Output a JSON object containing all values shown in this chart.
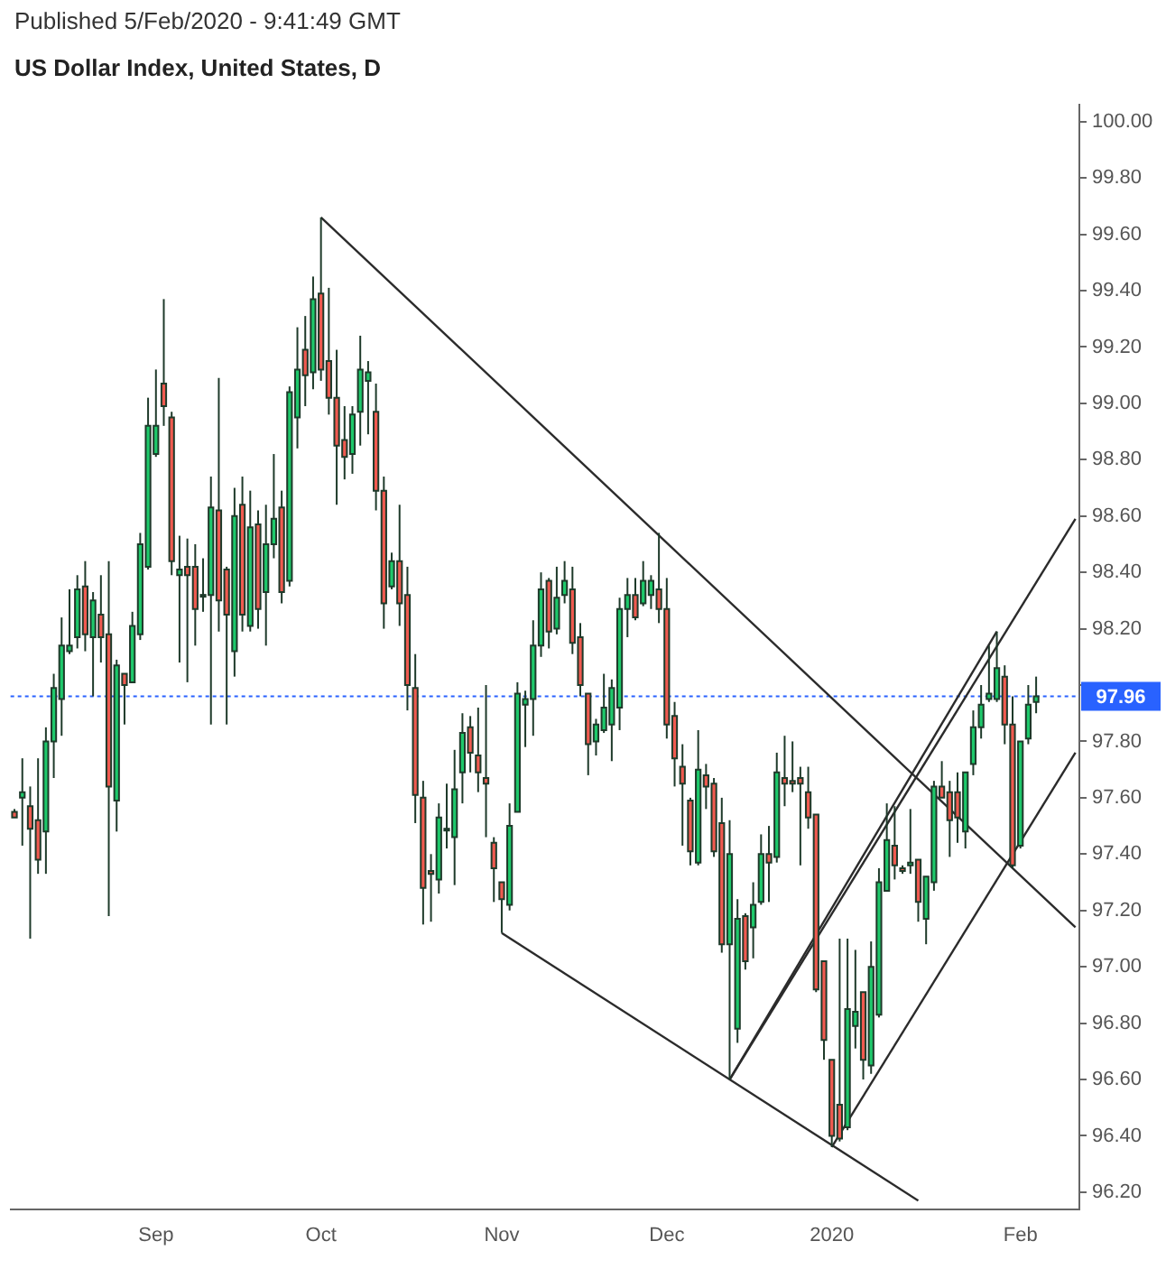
{
  "chart_data": {
    "type": "candlestick",
    "title": "US Dollar Index, United States, D",
    "annotations": [
      "Published 5/Feb/2020 - 9:41:49 GMT"
    ],
    "categories": [
      null,
      null,
      null,
      null,
      null,
      null,
      null,
      null,
      null,
      null,
      null,
      null,
      null,
      null,
      null,
      null,
      null,
      null,
      "Sep",
      null,
      null,
      null,
      null,
      null,
      null,
      null,
      null,
      null,
      null,
      null,
      null,
      null,
      null,
      null,
      null,
      null,
      null,
      null,
      null,
      "Oct",
      null,
      null,
      null,
      null,
      null,
      null,
      null,
      null,
      null,
      null,
      null,
      null,
      null,
      null,
      null,
      null,
      null,
      null,
      null,
      null,
      null,
      null,
      "Nov",
      null,
      null,
      null,
      null,
      null,
      null,
      null,
      null,
      null,
      null,
      null,
      null,
      null,
      null,
      null,
      null,
      null,
      null,
      null,
      null,
      "Dec",
      null,
      null,
      null,
      null,
      null,
      null,
      null,
      null,
      null,
      null,
      null,
      null,
      null,
      null,
      null,
      null,
      null,
      null,
      null,
      null,
      "2020",
      null,
      null,
      null,
      null,
      null,
      null,
      null,
      null,
      null,
      null,
      null,
      null,
      null,
      null,
      null,
      null,
      null,
      null,
      null,
      null,
      null,
      null,
      null,
      "Feb",
      null,
      null,
      null,
      null,
      null,
      null,
      null
    ],
    "ohlc": [
      [
        97.55,
        97.56,
        97.53,
        97.53
      ],
      [
        97.6,
        97.74,
        97.43,
        97.62
      ],
      [
        97.57,
        97.64,
        97.1,
        97.49
      ],
      [
        97.52,
        97.74,
        97.33,
        97.38
      ],
      [
        97.48,
        97.85,
        97.33,
        97.8
      ],
      [
        97.8,
        98.04,
        97.67,
        97.99
      ],
      [
        97.95,
        98.24,
        97.82,
        98.14
      ],
      [
        98.12,
        98.34,
        98.11,
        98.14
      ],
      [
        98.17,
        98.39,
        98.13,
        98.34
      ],
      [
        98.35,
        98.44,
        98.12,
        98.18
      ],
      [
        98.17,
        98.33,
        97.96,
        98.3
      ],
      [
        98.25,
        98.39,
        98.08,
        98.17
      ],
      [
        98.18,
        98.44,
        97.18,
        97.64
      ],
      [
        97.59,
        98.09,
        97.48,
        98.07
      ],
      [
        98.04,
        98.04,
        97.86,
        98.0
      ],
      [
        98.01,
        98.26,
        98.01,
        98.21
      ],
      [
        98.18,
        98.54,
        98.16,
        98.5
      ],
      [
        98.42,
        99.02,
        98.41,
        98.92
      ],
      [
        98.82,
        99.12,
        98.81,
        98.92
      ],
      [
        99.07,
        99.37,
        98.92,
        98.99
      ],
      [
        98.95,
        98.97,
        98.39,
        98.44
      ],
      [
        98.39,
        98.53,
        98.08,
        98.41
      ],
      [
        98.42,
        98.52,
        98.01,
        98.39
      ],
      [
        98.42,
        98.5,
        98.14,
        98.27
      ],
      [
        98.32,
        98.45,
        98.26,
        98.32
      ],
      [
        98.32,
        98.74,
        97.86,
        98.63
      ],
      [
        98.62,
        99.09,
        98.19,
        98.3
      ],
      [
        98.41,
        98.42,
        97.86,
        98.25
      ],
      [
        98.12,
        98.7,
        98.03,
        98.6
      ],
      [
        98.64,
        98.74,
        98.19,
        98.25
      ],
      [
        98.21,
        98.69,
        98.19,
        98.56
      ],
      [
        98.57,
        98.62,
        98.2,
        98.27
      ],
      [
        98.33,
        98.64,
        98.14,
        98.5
      ],
      [
        98.5,
        98.82,
        98.45,
        98.59
      ],
      [
        98.63,
        98.69,
        98.29,
        98.33
      ],
      [
        98.37,
        99.06,
        98.35,
        99.04
      ],
      [
        98.95,
        99.27,
        98.84,
        99.12
      ],
      [
        99.19,
        99.31,
        98.99,
        99.1
      ],
      [
        99.11,
        99.45,
        99.05,
        99.37
      ],
      [
        99.39,
        99.66,
        99.08,
        99.12
      ],
      [
        99.15,
        99.41,
        98.96,
        99.02
      ],
      [
        99.02,
        99.19,
        98.64,
        98.85
      ],
      [
        98.87,
        98.99,
        98.73,
        98.81
      ],
      [
        98.82,
        98.99,
        98.75,
        98.96
      ],
      [
        98.97,
        99.24,
        98.85,
        99.12
      ],
      [
        99.08,
        99.15,
        98.89,
        99.11
      ],
      [
        98.97,
        99.07,
        98.62,
        98.69
      ],
      [
        98.69,
        98.74,
        98.2,
        98.29
      ],
      [
        98.35,
        98.47,
        98.34,
        98.44
      ],
      [
        98.44,
        98.64,
        98.21,
        98.29
      ],
      [
        98.32,
        98.42,
        97.91,
        98.0
      ],
      [
        97.99,
        98.11,
        97.51,
        97.61
      ],
      [
        97.6,
        97.66,
        97.15,
        97.28
      ],
      [
        97.34,
        97.4,
        97.16,
        97.33
      ],
      [
        97.31,
        97.58,
        97.26,
        97.53
      ],
      [
        97.49,
        97.65,
        97.42,
        97.49
      ],
      [
        97.46,
        97.77,
        97.29,
        97.63
      ],
      [
        97.69,
        97.9,
        97.58,
        97.83
      ],
      [
        97.85,
        97.89,
        97.69,
        97.76
      ],
      [
        97.75,
        97.92,
        97.62,
        97.69
      ],
      [
        97.67,
        98.0,
        97.46,
        97.65
      ],
      [
        97.44,
        97.46,
        97.23,
        97.35
      ],
      [
        97.3,
        97.3,
        97.12,
        97.24
      ],
      [
        97.22,
        97.58,
        97.2,
        97.5
      ],
      [
        97.55,
        98.01,
        97.55,
        97.97
      ],
      [
        97.93,
        97.98,
        97.78,
        97.95
      ],
      [
        97.95,
        98.23,
        97.82,
        98.14
      ],
      [
        98.14,
        98.4,
        98.1,
        98.34
      ],
      [
        98.37,
        98.38,
        98.13,
        98.19
      ],
      [
        98.2,
        98.42,
        98.18,
        98.31
      ],
      [
        98.32,
        98.44,
        98.29,
        98.37
      ],
      [
        98.34,
        98.42,
        98.11,
        98.15
      ],
      [
        98.17,
        98.22,
        97.96,
        98.0
      ],
      [
        97.97,
        97.97,
        97.68,
        97.79
      ],
      [
        97.8,
        97.88,
        97.75,
        97.86
      ],
      [
        97.84,
        98.04,
        97.83,
        97.92
      ],
      [
        97.86,
        98.02,
        97.73,
        97.99
      ],
      [
        97.92,
        98.31,
        97.84,
        98.27
      ],
      [
        98.27,
        98.38,
        98.17,
        98.32
      ],
      [
        98.32,
        98.38,
        98.23,
        98.24
      ],
      [
        98.29,
        98.44,
        98.28,
        98.37
      ],
      [
        98.32,
        98.39,
        98.27,
        98.37
      ],
      [
        98.34,
        98.54,
        98.22,
        98.27
      ],
      [
        98.27,
        98.38,
        97.81,
        97.86
      ],
      [
        97.89,
        97.94,
        97.64,
        97.74
      ],
      [
        97.71,
        97.79,
        97.43,
        97.65
      ],
      [
        97.59,
        97.6,
        97.36,
        97.41
      ],
      [
        97.37,
        97.84,
        97.36,
        97.7
      ],
      [
        97.68,
        97.72,
        97.56,
        97.64
      ],
      [
        97.65,
        97.67,
        97.39,
        97.41
      ],
      [
        97.51,
        97.6,
        97.05,
        97.08
      ],
      [
        97.08,
        97.52,
        96.6,
        97.4
      ],
      [
        96.78,
        97.24,
        96.73,
        97.17
      ],
      [
        97.18,
        97.19,
        96.99,
        97.02
      ],
      [
        97.14,
        97.3,
        97.03,
        97.22
      ],
      [
        97.23,
        97.47,
        97.22,
        97.4
      ],
      [
        97.4,
        97.5,
        97.23,
        97.37
      ],
      [
        97.39,
        97.76,
        97.37,
        97.69
      ],
      [
        97.67,
        97.82,
        97.57,
        97.65
      ],
      [
        97.66,
        97.8,
        97.62,
        97.65
      ],
      [
        97.67,
        97.71,
        97.36,
        97.65
      ],
      [
        97.62,
        97.71,
        97.49,
        97.53
      ],
      [
        97.54,
        97.54,
        96.91,
        96.92
      ],
      [
        97.02,
        97.02,
        96.67,
        96.74
      ],
      [
        96.67,
        96.67,
        96.36,
        96.4
      ],
      [
        96.51,
        97.1,
        96.38,
        96.39
      ],
      [
        96.43,
        97.1,
        96.42,
        96.85
      ],
      [
        96.79,
        97.06,
        96.71,
        96.84
      ],
      [
        96.91,
        96.91,
        96.6,
        96.67
      ],
      [
        96.65,
        97.09,
        96.62,
        97.0
      ],
      [
        96.83,
        97.35,
        96.82,
        97.3
      ],
      [
        97.27,
        97.58,
        97.27,
        97.45
      ],
      [
        97.43,
        97.57,
        97.31,
        97.36
      ],
      [
        97.35,
        97.36,
        97.33,
        97.34
      ],
      [
        97.36,
        97.56,
        97.33,
        97.37
      ],
      [
        97.38,
        97.38,
        97.16,
        97.23
      ],
      [
        97.17,
        97.32,
        97.08,
        97.32
      ],
      [
        97.3,
        97.66,
        97.27,
        97.64
      ],
      [
        97.64,
        97.73,
        97.6,
        97.6
      ],
      [
        97.62,
        97.66,
        97.39,
        97.52
      ],
      [
        97.62,
        97.69,
        97.44,
        97.53
      ],
      [
        97.48,
        97.69,
        97.42,
        97.69
      ],
      [
        97.72,
        97.91,
        97.68,
        97.85
      ],
      [
        97.85,
        98.0,
        97.81,
        97.93
      ],
      [
        97.95,
        98.14,
        97.94,
        97.97
      ],
      [
        97.95,
        98.19,
        97.94,
        98.06
      ],
      [
        98.03,
        98.07,
        97.79,
        97.86
      ],
      [
        97.86,
        97.96,
        97.35,
        97.36
      ],
      [
        97.43,
        97.8,
        97.42,
        97.8
      ],
      [
        97.81,
        98.0,
        97.79,
        97.93
      ],
      [
        97.94,
        98.03,
        97.9,
        97.96
      ],
      null,
      null,
      null,
      null,
      null
    ],
    "colors": [
      "#f05a50",
      "#1ec96b",
      "#f05a50",
      "#f05a50",
      "#1ec96b",
      "#1ec96b",
      "#1ec96b",
      "#1ec96b",
      "#1ec96b",
      "#f05a50",
      "#1ec96b",
      "#f05a50",
      "#f05a50",
      "#1ec96b",
      "#f05a50",
      "#1ec96b",
      "#1ec96b",
      "#1ec96b",
      "#1ec96b",
      "#f05a50",
      "#f05a50",
      "#1ec96b",
      "#f05a50",
      "#f05a50",
      "#1ec96b",
      "#1ec96b",
      "#f05a50",
      "#f05a50",
      "#1ec96b",
      "#f05a50",
      "#1ec96b",
      "#f05a50",
      "#1ec96b",
      "#1ec96b",
      "#f05a50",
      "#1ec96b",
      "#1ec96b",
      "#f05a50",
      "#1ec96b",
      "#f05a50",
      "#f05a50",
      "#f05a50",
      "#f05a50",
      "#1ec96b",
      "#1ec96b",
      "#1ec96b",
      "#f05a50",
      "#f05a50",
      "#1ec96b",
      "#f05a50",
      "#f05a50",
      "#f05a50",
      "#f05a50",
      "#f05a50",
      "#1ec96b",
      "#1ec96b",
      "#1ec96b",
      "#1ec96b",
      "#f05a50",
      "#f05a50",
      "#f05a50",
      "#f05a50",
      "#f05a50",
      "#1ec96b",
      "#1ec96b",
      "#1ec96b",
      "#1ec96b",
      "#1ec96b",
      "#f05a50",
      "#1ec96b",
      "#1ec96b",
      "#f05a50",
      "#f05a50",
      "#f05a50",
      "#1ec96b",
      "#1ec96b",
      "#1ec96b",
      "#1ec96b",
      "#1ec96b",
      "#f05a50",
      "#1ec96b",
      "#1ec96b",
      "#f05a50",
      "#f05a50",
      "#f05a50",
      "#f05a50",
      "#f05a50",
      "#1ec96b",
      "#f05a50",
      "#f05a50",
      "#f05a50",
      "#1ec96b",
      "#1ec96b",
      "#f05a50",
      "#1ec96b",
      "#1ec96b",
      "#f05a50",
      "#1ec96b",
      "#f05a50",
      "#f05a50",
      "#f05a50",
      "#f05a50",
      "#f05a50",
      "#f05a50",
      "#f05a50",
      "#f05a50",
      "#1ec96b",
      "#1ec96b",
      "#f05a50",
      "#1ec96b",
      "#1ec96b",
      "#1ec96b",
      "#f05a50",
      "#f05a50",
      "#1ec96b",
      "#f05a50",
      "#1ec96b",
      "#1ec96b",
      "#f05a50",
      "#f05a50",
      "#f05a50",
      "#1ec96b",
      "#1ec96b",
      "#1ec96b",
      "#1ec96b",
      "#1ec96b",
      "#f05a50",
      "#f05a50",
      "#1ec96b",
      "#1ec96b",
      "#1ec96b",
      null,
      null,
      null,
      null,
      null
    ],
    "series": [
      {
        "type": "line",
        "color": "#2b2b2b",
        "values": [
          null,
          null,
          null,
          null,
          null,
          null,
          null,
          null,
          null,
          null,
          null,
          null,
          null,
          null,
          null,
          null,
          null,
          null,
          null,
          null,
          null,
          null,
          null,
          null,
          null,
          null,
          null,
          null,
          null,
          null,
          null,
          null,
          null,
          null,
          null,
          null,
          null,
          null,
          null,
          99.66,
          null,
          null,
          null,
          null,
          null,
          null,
          null,
          null,
          null,
          null,
          null,
          null,
          null,
          null,
          null,
          null,
          null,
          null,
          null,
          null,
          null,
          null,
          null,
          null,
          null,
          null,
          null,
          null,
          null,
          null,
          null,
          null,
          null,
          null,
          null,
          null,
          null,
          null,
          null,
          null,
          null,
          null,
          null,
          null,
          null,
          null,
          null,
          null,
          null,
          null,
          null,
          null,
          null,
          null,
          null,
          null,
          null,
          null,
          null,
          null,
          null,
          null,
          null,
          null,
          null,
          null,
          null,
          null,
          null,
          null,
          null,
          null,
          null,
          null,
          null,
          null,
          null,
          null,
          null,
          null,
          null,
          null,
          null,
          null,
          null,
          null,
          null,
          null,
          null,
          null,
          null,
          null,
          null,
          null,
          null,
          97.14
        ]
      },
      {
        "type": "line",
        "color": "#2b2b2b",
        "values": [
          null,
          null,
          null,
          null,
          null,
          null,
          null,
          null,
          null,
          null,
          null,
          null,
          null,
          null,
          null,
          null,
          null,
          null,
          null,
          null,
          null,
          null,
          null,
          null,
          null,
          null,
          null,
          null,
          null,
          null,
          null,
          null,
          null,
          null,
          null,
          null,
          null,
          null,
          null,
          null,
          null,
          null,
          null,
          null,
          null,
          null,
          null,
          null,
          null,
          null,
          null,
          null,
          null,
          null,
          null,
          null,
          null,
          null,
          null,
          null,
          null,
          null,
          97.12,
          null,
          null,
          null,
          null,
          null,
          null,
          null,
          null,
          null,
          null,
          null,
          null,
          null,
          null,
          null,
          null,
          null,
          null,
          null,
          null,
          null,
          null,
          null,
          null,
          null,
          null,
          null,
          null,
          null,
          null,
          null,
          null,
          null,
          null,
          null,
          null,
          null,
          null,
          null,
          null,
          null,
          null,
          null,
          null,
          null,
          null,
          null,
          null,
          null,
          null,
          null,
          null,
          96.17,
          null,
          null,
          null,
          null,
          null,
          null,
          null,
          null,
          null,
          null,
          null,
          null,
          null,
          null,
          null,
          null,
          null,
          null,
          null,
          null
        ]
      },
      {
        "type": "line",
        "color": "#2b2b2b",
        "values": [
          null,
          null,
          null,
          null,
          null,
          null,
          null,
          null,
          null,
          null,
          null,
          null,
          null,
          null,
          null,
          null,
          null,
          null,
          null,
          null,
          null,
          null,
          null,
          null,
          null,
          null,
          null,
          null,
          null,
          null,
          null,
          null,
          null,
          null,
          null,
          null,
          null,
          null,
          null,
          null,
          null,
          null,
          null,
          null,
          null,
          null,
          null,
          null,
          null,
          null,
          null,
          null,
          null,
          null,
          null,
          null,
          null,
          null,
          null,
          null,
          null,
          null,
          null,
          null,
          null,
          null,
          null,
          null,
          null,
          null,
          null,
          null,
          null,
          null,
          null,
          null,
          null,
          null,
          null,
          null,
          null,
          null,
          null,
          null,
          null,
          null,
          null,
          null,
          null,
          null,
          null,
          96.6,
          null,
          null,
          null,
          null,
          null,
          null,
          null,
          null,
          null,
          null,
          null,
          null,
          null,
          null,
          null,
          null,
          null,
          null,
          null,
          null,
          null,
          null,
          null,
          null,
          null,
          null,
          null,
          null,
          null,
          null,
          null,
          null,
          null,
          98.19,
          null,
          null,
          null,
          null,
          null,
          null,
          null,
          null,
          null,
          null
        ]
      },
      {
        "type": "line",
        "color": "#2b2b2b",
        "values": [
          null,
          null,
          null,
          null,
          null,
          null,
          null,
          null,
          null,
          null,
          null,
          null,
          null,
          null,
          null,
          null,
          null,
          null,
          null,
          null,
          null,
          null,
          null,
          null,
          null,
          null,
          null,
          null,
          null,
          null,
          null,
          null,
          null,
          null,
          null,
          null,
          null,
          null,
          null,
          null,
          null,
          null,
          null,
          null,
          null,
          null,
          null,
          null,
          null,
          null,
          null,
          null,
          null,
          null,
          null,
          null,
          null,
          null,
          null,
          null,
          null,
          null,
          null,
          null,
          null,
          null,
          null,
          null,
          null,
          null,
          null,
          null,
          null,
          null,
          null,
          null,
          null,
          null,
          null,
          null,
          null,
          null,
          null,
          null,
          null,
          null,
          null,
          null,
          null,
          null,
          null,
          96.6,
          null,
          null,
          null,
          null,
          null,
          null,
          null,
          null,
          null,
          null,
          null,
          null,
          null,
          null,
          null,
          null,
          null,
          null,
          null,
          null,
          null,
          null,
          null,
          null,
          null,
          null,
          null,
          null,
          null,
          null,
          null,
          null,
          null,
          null,
          null,
          null,
          null,
          null,
          null,
          null,
          null,
          null,
          null,
          98.59
        ]
      },
      {
        "type": "line",
        "color": "#2b2b2b",
        "values": [
          null,
          null,
          null,
          null,
          null,
          null,
          null,
          null,
          null,
          null,
          null,
          null,
          null,
          null,
          null,
          null,
          null,
          null,
          null,
          null,
          null,
          null,
          null,
          null,
          null,
          null,
          null,
          null,
          null,
          null,
          null,
          null,
          null,
          null,
          null,
          null,
          null,
          null,
          null,
          null,
          null,
          null,
          null,
          null,
          null,
          null,
          null,
          null,
          null,
          null,
          null,
          null,
          null,
          null,
          null,
          null,
          null,
          null,
          null,
          null,
          null,
          null,
          null,
          null,
          null,
          null,
          null,
          null,
          null,
          null,
          null,
          null,
          null,
          null,
          null,
          null,
          null,
          null,
          null,
          null,
          null,
          null,
          null,
          null,
          null,
          null,
          null,
          null,
          null,
          null,
          null,
          null,
          null,
          null,
          null,
          null,
          null,
          null,
          null,
          null,
          null,
          null,
          null,
          null,
          96.36,
          null,
          null,
          null,
          null,
          null,
          null,
          null,
          null,
          null,
          null,
          null,
          null,
          null,
          null,
          null,
          null,
          null,
          null,
          null,
          null,
          null,
          null,
          null,
          null,
          null,
          null,
          null,
          null,
          null,
          null,
          97.76
        ]
      }
    ],
    "ylim": [
      96.14,
      100.06
    ],
    "yticks": [
      {
        "value": 96.2,
        "label": "96.20"
      },
      {
        "value": 96.4,
        "label": "96.40"
      },
      {
        "value": 96.6,
        "label": "96.60"
      },
      {
        "value": 96.8,
        "label": "96.80"
      },
      {
        "value": 97,
        "label": "97.00"
      },
      {
        "value": 97.2,
        "label": "97.20"
      },
      {
        "value": 97.4,
        "label": "97.40"
      },
      {
        "value": 97.6,
        "label": "97.60"
      },
      {
        "value": 97.8,
        "label": "97.80"
      },
      {
        "value": 98,
        "label": null
      },
      {
        "value": 98.2,
        "label": "98.20"
      },
      {
        "value": 98.4,
        "label": "98.40"
      },
      {
        "value": 98.6,
        "label": "98.60"
      },
      {
        "value": 98.8,
        "label": "98.80"
      },
      {
        "value": 99,
        "label": "99.00"
      },
      {
        "value": 99.2,
        "label": "99.20"
      },
      {
        "value": 99.4,
        "label": "99.40"
      },
      {
        "value": 99.6,
        "label": "99.60"
      },
      {
        "value": 99.8,
        "label": "99.80"
      },
      {
        "value": 100,
        "label": "100.00"
      }
    ],
    "ref_lines": [
      {
        "axis": "y",
        "value": 97.96,
        "label": "97.96",
        "color": "#2962ff",
        "line_style": "dotted"
      }
    ],
    "marker": "none"
  }
}
